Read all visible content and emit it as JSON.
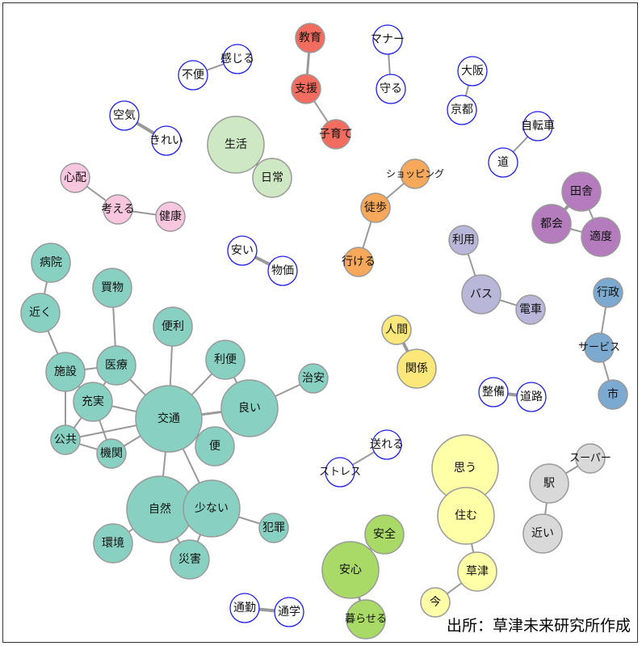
{
  "source_note": "出所：草津未来研究所作成",
  "colors": {
    "red": "#f26d60",
    "orange": "#f7a85a",
    "teal": "#88d1c2",
    "purple": "#b47cbd",
    "lavender": "#b9b7d9",
    "blue": "#7ba9d0",
    "yellow": "#fbe77a",
    "paleyellow": "#ffffa8",
    "green": "#a9d966",
    "paleGreen": "#cfe8c4",
    "pink": "#f8c6df",
    "gray": "#d9d9d9",
    "white": "#ffffff",
    "whiteStroke": "#1f1fe6",
    "grayStroke": "#999999",
    "edge": "#999999"
  },
  "nodes": [
    {
      "id": "kyoiku",
      "label": "教育",
      "group": "red",
      "size": "s"
    },
    {
      "id": "shien",
      "label": "支援",
      "group": "red",
      "size": "s"
    },
    {
      "id": "kosodate",
      "label": "子育て",
      "group": "red",
      "size": "s"
    },
    {
      "id": "manner",
      "label": "マナー",
      "group": "white",
      "size": "s"
    },
    {
      "id": "mamoru",
      "label": "守る",
      "group": "white",
      "size": "s"
    },
    {
      "id": "osaka",
      "label": "大阪",
      "group": "white",
      "size": "s"
    },
    {
      "id": "kyoto",
      "label": "京都",
      "group": "white",
      "size": "s"
    },
    {
      "id": "jitensha",
      "label": "自転車",
      "group": "white",
      "size": "s"
    },
    {
      "id": "michi",
      "label": "道",
      "group": "white",
      "size": "s"
    },
    {
      "id": "kanjiru",
      "label": "感じる",
      "group": "white",
      "size": "s"
    },
    {
      "id": "fuben",
      "label": "不便",
      "group": "white",
      "size": "s"
    },
    {
      "id": "kuki",
      "label": "空気",
      "group": "white",
      "size": "s"
    },
    {
      "id": "kirei",
      "label": "きれい",
      "group": "white",
      "size": "s"
    },
    {
      "id": "seikatsu",
      "label": "生活",
      "group": "paleGreen",
      "size": "l"
    },
    {
      "id": "nichijo",
      "label": "日常",
      "group": "paleGreen",
      "size": "m"
    },
    {
      "id": "shinpai",
      "label": "心配",
      "group": "pink",
      "size": "s"
    },
    {
      "id": "kangaeru",
      "label": "考える",
      "group": "pink",
      "size": "s"
    },
    {
      "id": "kenko",
      "label": "健康",
      "group": "pink",
      "size": "s"
    },
    {
      "id": "shopping",
      "label": "ショッピング",
      "group": "orange",
      "size": "s"
    },
    {
      "id": "toho",
      "label": "徒歩",
      "group": "orange",
      "size": "s"
    },
    {
      "id": "ikeru",
      "label": "行ける",
      "group": "orange",
      "size": "s"
    },
    {
      "id": "inaka",
      "label": "田舎",
      "group": "purple",
      "size": "m"
    },
    {
      "id": "tokai",
      "label": "都会",
      "group": "purple",
      "size": "m"
    },
    {
      "id": "tekido",
      "label": "適度",
      "group": "purple",
      "size": "m"
    },
    {
      "id": "riyo",
      "label": "利用",
      "group": "lavender",
      "size": "s"
    },
    {
      "id": "bus",
      "label": "バス",
      "group": "lavender",
      "size": "m"
    },
    {
      "id": "densha",
      "label": "電車",
      "group": "lavender",
      "size": "s"
    },
    {
      "id": "yasui",
      "label": "安い",
      "group": "white",
      "size": "s"
    },
    {
      "id": "bukka",
      "label": "物価",
      "group": "white",
      "size": "s"
    },
    {
      "id": "gyosei",
      "label": "行政",
      "group": "blue",
      "size": "s"
    },
    {
      "id": "service",
      "label": "サービス",
      "group": "blue",
      "size": "s"
    },
    {
      "id": "shi",
      "label": "市",
      "group": "blue",
      "size": "s"
    },
    {
      "id": "ningen",
      "label": "人間",
      "group": "yellow",
      "size": "s"
    },
    {
      "id": "kankei",
      "label": "関係",
      "group": "yellow",
      "size": "m"
    },
    {
      "id": "seibi",
      "label": "整備",
      "group": "white",
      "size": "s"
    },
    {
      "id": "doro",
      "label": "道路",
      "group": "white",
      "size": "s"
    },
    {
      "id": "byoin",
      "label": "病院",
      "group": "teal",
      "size": "m"
    },
    {
      "id": "chikaku",
      "label": "近く",
      "group": "teal",
      "size": "m"
    },
    {
      "id": "kaimono",
      "label": "買物",
      "group": "teal",
      "size": "m"
    },
    {
      "id": "benri",
      "label": "便利",
      "group": "teal",
      "size": "m"
    },
    {
      "id": "shisetsu",
      "label": "施設",
      "group": "teal",
      "size": "m"
    },
    {
      "id": "iryo",
      "label": "医療",
      "group": "teal",
      "size": "m"
    },
    {
      "id": "riben",
      "label": "利便",
      "group": "teal",
      "size": "m"
    },
    {
      "id": "chian",
      "label": "治安",
      "group": "teal",
      "size": "s"
    },
    {
      "id": "jujitsu",
      "label": "充実",
      "group": "teal",
      "size": "m"
    },
    {
      "id": "kotsu",
      "label": "交通",
      "group": "teal",
      "size": "xl"
    },
    {
      "id": "yoi",
      "label": "良い",
      "group": "teal",
      "size": "l"
    },
    {
      "id": "kokyo",
      "label": "公共",
      "group": "teal",
      "size": "s"
    },
    {
      "id": "kikan",
      "label": "機関",
      "group": "teal",
      "size": "s"
    },
    {
      "id": "bin",
      "label": "便",
      "group": "teal",
      "size": "m"
    },
    {
      "id": "shizen",
      "label": "自然",
      "group": "teal",
      "size": "xl"
    },
    {
      "id": "sukunai",
      "label": "少ない",
      "group": "teal",
      "size": "l"
    },
    {
      "id": "hanzai",
      "label": "犯罪",
      "group": "teal",
      "size": "s"
    },
    {
      "id": "kankyo",
      "label": "環境",
      "group": "teal",
      "size": "m"
    },
    {
      "id": "saigai",
      "label": "災害",
      "group": "teal",
      "size": "m"
    },
    {
      "id": "okureru",
      "label": "送れる",
      "group": "white",
      "size": "s"
    },
    {
      "id": "stress",
      "label": "ストレス",
      "group": "white",
      "size": "s"
    },
    {
      "id": "omou",
      "label": "思う",
      "group": "paleyellow",
      "size": "xl"
    },
    {
      "id": "sumu",
      "label": "住む",
      "group": "paleyellow",
      "size": "l"
    },
    {
      "id": "kusatsu",
      "label": "草津",
      "group": "paleyellow",
      "size": "m"
    },
    {
      "id": "ima",
      "label": "今",
      "group": "paleyellow",
      "size": "s"
    },
    {
      "id": "super",
      "label": "スーパー",
      "group": "gray",
      "size": "s"
    },
    {
      "id": "eki",
      "label": "駅",
      "group": "gray",
      "size": "m"
    },
    {
      "id": "chikai",
      "label": "近い",
      "group": "gray",
      "size": "m"
    },
    {
      "id": "anzen",
      "label": "安全",
      "group": "green",
      "size": "m"
    },
    {
      "id": "anshin",
      "label": "安心",
      "group": "green",
      "size": "l"
    },
    {
      "id": "kuraseru",
      "label": "暮らせる",
      "group": "green",
      "size": "m"
    },
    {
      "id": "tsukin",
      "label": "通勤",
      "group": "white",
      "size": "s"
    },
    {
      "id": "tsugaku",
      "label": "通学",
      "group": "white",
      "size": "s"
    }
  ],
  "edges": [
    [
      "kyoiku",
      "shien",
      3
    ],
    [
      "shien",
      "kosodate",
      2
    ],
    [
      "manner",
      "mamoru",
      2
    ],
    [
      "osaka",
      "kyoto",
      2
    ],
    [
      "jitensha",
      "michi",
      2
    ],
    [
      "kanjiru",
      "fuben",
      2
    ],
    [
      "kuki",
      "kirei",
      4
    ],
    [
      "seikatsu",
      "nichijo",
      4
    ],
    [
      "shinpai",
      "kangaeru",
      2
    ],
    [
      "kangaeru",
      "kenko",
      2
    ],
    [
      "shopping",
      "toho",
      2
    ],
    [
      "toho",
      "ikeru",
      2
    ],
    [
      "inaka",
      "tokai",
      4
    ],
    [
      "inaka",
      "tekido",
      2
    ],
    [
      "tokai",
      "tekido",
      2
    ],
    [
      "riyo",
      "bus",
      2
    ],
    [
      "bus",
      "densha",
      2
    ],
    [
      "yasui",
      "bukka",
      4
    ],
    [
      "gyosei",
      "service",
      2
    ],
    [
      "service",
      "shi",
      2
    ],
    [
      "ningen",
      "kankei",
      4
    ],
    [
      "seibi",
      "doro",
      4
    ],
    [
      "byoin",
      "chikaku",
      2
    ],
    [
      "chikaku",
      "shisetsu",
      2
    ],
    [
      "kaimono",
      "iryo",
      2
    ],
    [
      "shisetsu",
      "iryo",
      2
    ],
    [
      "shisetsu",
      "jujitsu",
      2
    ],
    [
      "shisetsu",
      "kokyo",
      2
    ],
    [
      "iryo",
      "jujitsu",
      2
    ],
    [
      "iryo",
      "kotsu",
      2
    ],
    [
      "jujitsu",
      "kotsu",
      2
    ],
    [
      "jujitsu",
      "kokyo",
      2
    ],
    [
      "jujitsu",
      "kikan",
      2
    ],
    [
      "kokyo",
      "kikan",
      2
    ],
    [
      "kokyo",
      "kotsu",
      2
    ],
    [
      "kikan",
      "kotsu",
      2
    ],
    [
      "benri",
      "kotsu",
      2
    ],
    [
      "riben",
      "kotsu",
      2
    ],
    [
      "kotsu",
      "yoi",
      3
    ],
    [
      "kotsu",
      "bin",
      2
    ],
    [
      "yoi",
      "chian",
      2
    ],
    [
      "yoi",
      "riben",
      2
    ],
    [
      "kotsu",
      "shizen",
      2
    ],
    [
      "kotsu",
      "sukunai",
      2
    ],
    [
      "shizen",
      "sukunai",
      2
    ],
    [
      "shizen",
      "kankyo",
      2
    ],
    [
      "shizen",
      "saigai",
      2
    ],
    [
      "sukunai",
      "saigai",
      2
    ],
    [
      "sukunai",
      "hanzai",
      2
    ],
    [
      "okureru",
      "stress",
      2
    ],
    [
      "omou",
      "sumu",
      2
    ],
    [
      "sumu",
      "kusatsu",
      2
    ],
    [
      "kusatsu",
      "ima",
      2
    ],
    [
      "super",
      "eki",
      2
    ],
    [
      "eki",
      "chikai",
      2
    ],
    [
      "anzen",
      "anshin",
      2
    ],
    [
      "anshin",
      "kuraseru",
      3
    ],
    [
      "tsukin",
      "tsugaku",
      4
    ]
  ]
}
